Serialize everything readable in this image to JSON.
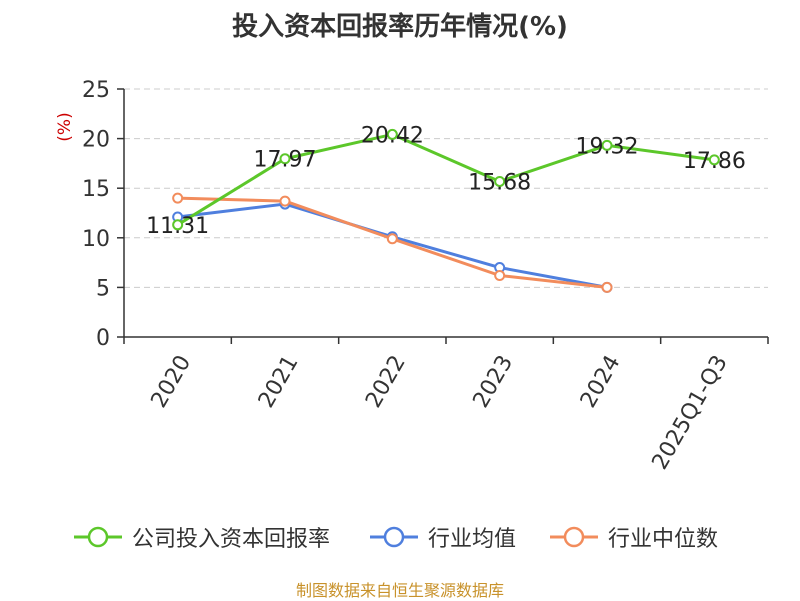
{
  "chart_data": {
    "type": "line",
    "title": "投入资本回报率历年情况(%)",
    "ylabel": "(%)",
    "xlabel": "",
    "categories": [
      "2020",
      "2021",
      "2022",
      "2023",
      "2024",
      "2025Q1-Q3"
    ],
    "ylim": [
      0,
      25
    ],
    "yticks": [
      0,
      5,
      10,
      15,
      20,
      25
    ],
    "grid": true,
    "legend_position": "bottom",
    "series": [
      {
        "name": "公司投入资本回报率",
        "color": "#5cc72a",
        "values": [
          11.31,
          17.97,
          20.42,
          15.68,
          19.32,
          17.86
        ],
        "labels": [
          "11.31",
          "17.97",
          "20.42",
          "15.68",
          "19.32",
          "17.86"
        ]
      },
      {
        "name": "行业均值",
        "color": "#4f7fde",
        "values": [
          12.1,
          13.4,
          10.1,
          7.0,
          5.0,
          null
        ]
      },
      {
        "name": "行业中位数",
        "color": "#f28c5c",
        "values": [
          14.0,
          13.7,
          9.9,
          6.2,
          5.0,
          null
        ]
      }
    ]
  },
  "source": "制图数据来自恒生聚源数据库",
  "colors": {
    "axis": "#333333",
    "grid": "#cccccc",
    "ylabel": "#cc0000",
    "source": "#c8922b"
  }
}
